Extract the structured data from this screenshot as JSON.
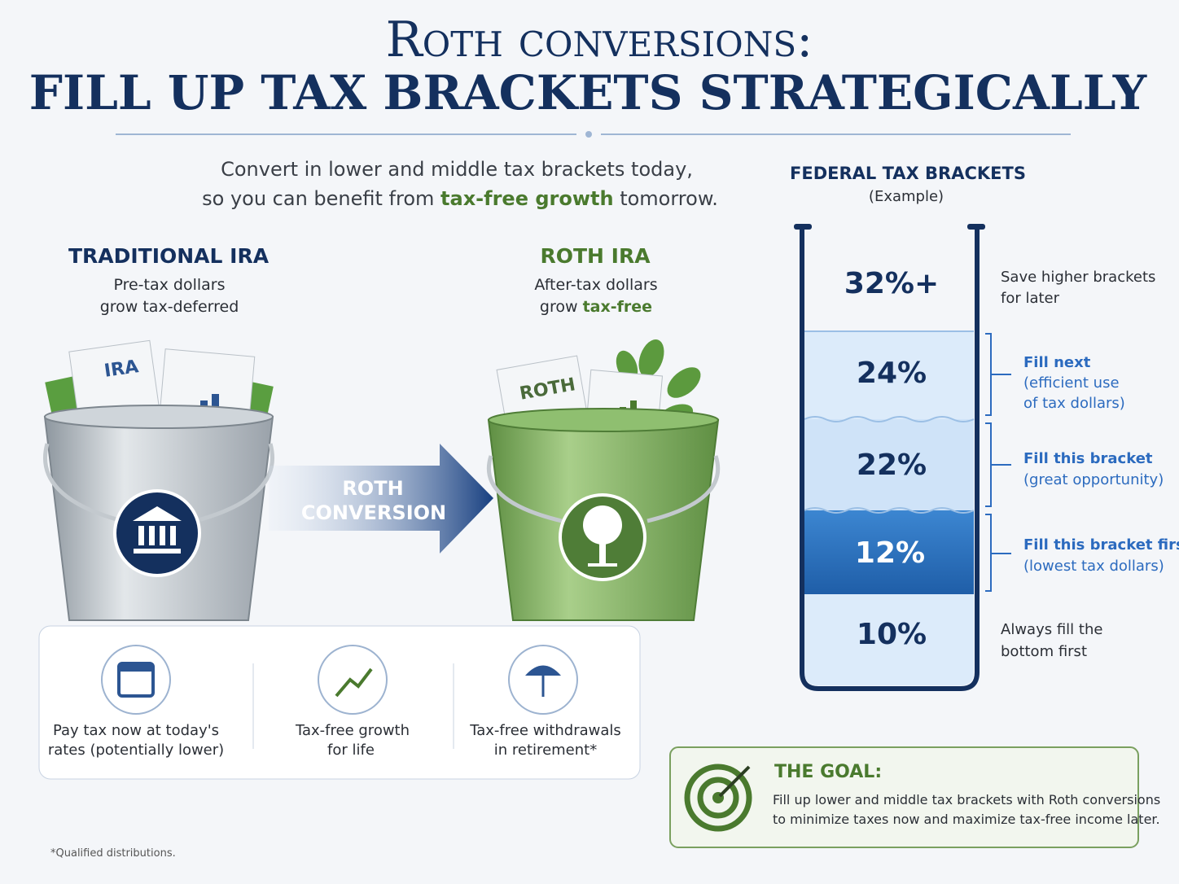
{
  "header": {
    "title_line1": "Roth conversions:",
    "title_line2": "FILL UP TAX BRACKETS STRATEGICALLY"
  },
  "intro": {
    "line1": "Convert in lower and middle tax brackets today,",
    "line2_start": "so you can benefit from ",
    "line2_highlight": "tax-free growth",
    "line2_end": " tomorrow."
  },
  "traditional": {
    "title": "TRADITIONAL IRA",
    "line1": "Pre-tax dollars",
    "line2": "grow tax-deferred",
    "paper_label": "IRA"
  },
  "roth": {
    "title": "ROTH IRA",
    "line1": "After-tax dollars",
    "line2_start": "grow ",
    "line2_highlight": "tax-free",
    "paper_label": "ROTH"
  },
  "arrow": {
    "line1": "ROTH",
    "line2": "CONVERSION"
  },
  "benefits": [
    {
      "line1": "Pay tax now at today's",
      "line2": "rates (potentially lower)"
    },
    {
      "line1": "Tax-free growth",
      "line2": "for life"
    },
    {
      "line1": "Tax-free withdrawals",
      "line2": "in retirement*"
    }
  ],
  "brackets": {
    "title": "FEDERAL TAX BRACKETS",
    "subtitle": "(Example)",
    "levels": [
      {
        "rate": "32%+",
        "note_line1": "Save higher brackets",
        "note_line2": "for later"
      },
      {
        "rate": "24%",
        "note_title": "Fill next",
        "note_line1": "(efficient use",
        "note_line2": "of tax dollars)"
      },
      {
        "rate": "22%",
        "note_title": "Fill this bracket",
        "note_line1": "(great opportunity)"
      },
      {
        "rate": "12%",
        "note_title": "Fill this bracket first",
        "note_line1": "(lowest tax dollars)"
      },
      {
        "rate": "10%",
        "note_line1": "Always fill the",
        "note_line2": "bottom first"
      }
    ]
  },
  "goal": {
    "title": "THE GOAL:",
    "line1": "Fill up lower and middle tax brackets with Roth conversions",
    "line2": "to minimize taxes now and maximize tax-free income later."
  },
  "footnote": "*Qualified distributions."
}
